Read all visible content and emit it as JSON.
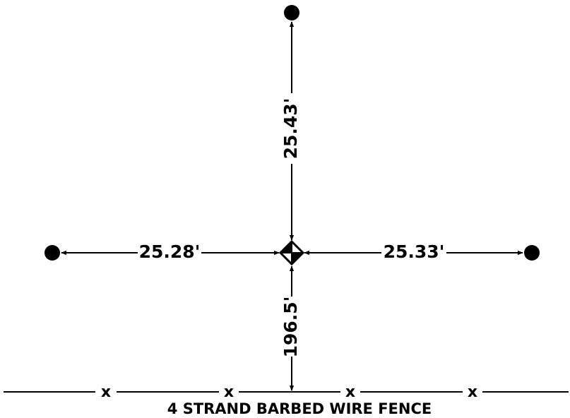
{
  "measurements": {
    "north": "25.43'",
    "west": "25.28'",
    "east": "25.33'",
    "south": "196.5'"
  },
  "fence": {
    "marker": "x",
    "caption": "4 STRAND BARBED WIRE FENCE"
  }
}
